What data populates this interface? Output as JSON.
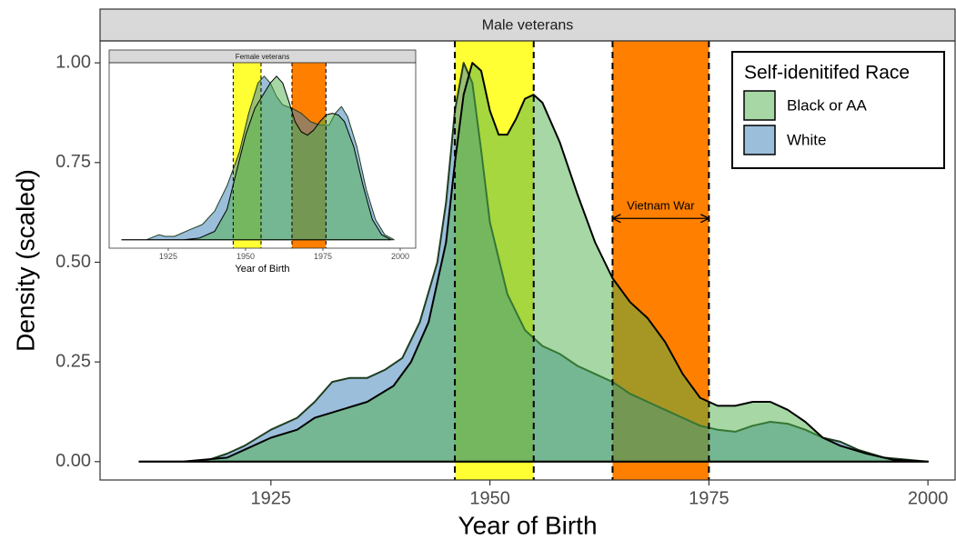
{
  "chart_data": [
    {
      "type": "area",
      "title": "Male veterans",
      "x_label": "Year of Birth",
      "y_label": "Density (scaled)",
      "legend_title": "Self-idenitifed Race",
      "legend": "top-right",
      "xlim": [
        1905.5,
        2003.1
      ],
      "ylim": [
        -0.046,
        1.055
      ],
      "xticks": [
        1925,
        1950,
        1975,
        2000
      ],
      "yticks": [
        {
          "value": 0,
          "label": "0.00"
        },
        {
          "value": 0.25,
          "label": "0.25"
        },
        {
          "value": 0.5,
          "label": "0.50"
        },
        {
          "value": 0.75,
          "label": "0.75"
        },
        {
          "value": 1,
          "label": "1.00"
        }
      ],
      "bands": [
        {
          "x": [
            1946,
            1955
          ],
          "color": "#ffff33"
        },
        {
          "x": [
            1964,
            1975
          ],
          "color": "#ff7f00"
        }
      ],
      "annotation": {
        "text": "Vietnam War",
        "x": [
          1964,
          1975
        ],
        "y": 0.61
      },
      "series": [
        {
          "name": "White",
          "color": "#377eb8",
          "x": [
            1910,
            1915,
            1918,
            1920,
            1922,
            1925,
            1928,
            1930,
            1932,
            1934,
            1936,
            1938,
            1940,
            1942,
            1944,
            1945,
            1946,
            1947,
            1948,
            1949,
            1950,
            1952,
            1954,
            1956,
            1958,
            1960,
            1962,
            1964,
            1966,
            1968,
            1970,
            1972,
            1974,
            1976,
            1978,
            1980,
            1982,
            1984,
            1986,
            1988,
            1990,
            1992,
            1995,
            2000
          ],
          "values": [
            0,
            0,
            0.005,
            0.02,
            0.04,
            0.08,
            0.11,
            0.15,
            0.2,
            0.21,
            0.21,
            0.23,
            0.26,
            0.35,
            0.5,
            0.65,
            0.88,
            1,
            0.95,
            0.78,
            0.6,
            0.42,
            0.33,
            0.29,
            0.27,
            0.24,
            0.22,
            0.2,
            0.17,
            0.15,
            0.13,
            0.11,
            0.09,
            0.08,
            0.075,
            0.09,
            0.1,
            0.095,
            0.08,
            0.06,
            0.05,
            0.03,
            0.01,
            0
          ]
        },
        {
          "name": "Black or AA",
          "color": "#4daf4a",
          "x": [
            1910,
            1915,
            1920,
            1922,
            1925,
            1928,
            1930,
            1933,
            1936,
            1939,
            1941,
            1943,
            1945,
            1946,
            1947,
            1948,
            1949,
            1950,
            1951,
            1952,
            1953,
            1954,
            1955,
            1956,
            1958,
            1960,
            1962,
            1964,
            1966,
            1968,
            1970,
            1972,
            1974,
            1976,
            1978,
            1980,
            1982,
            1984,
            1986,
            1988,
            1990,
            1993,
            1996,
            2000
          ],
          "values": [
            0,
            0,
            0.01,
            0.03,
            0.06,
            0.08,
            0.11,
            0.13,
            0.15,
            0.19,
            0.25,
            0.35,
            0.55,
            0.75,
            0.92,
            1,
            0.98,
            0.88,
            0.82,
            0.82,
            0.86,
            0.91,
            0.92,
            0.9,
            0.8,
            0.67,
            0.55,
            0.46,
            0.4,
            0.36,
            0.3,
            0.22,
            0.16,
            0.14,
            0.14,
            0.15,
            0.15,
            0.13,
            0.1,
            0.06,
            0.04,
            0.02,
            0.005,
            0
          ]
        }
      ]
    },
    {
      "type": "area",
      "title": "Female veterans",
      "x_label": "Year of Birth",
      "xlim": [
        1905.9,
        2005
      ],
      "ylim": [
        -0.05,
        1.05
      ],
      "xticks": [
        1925,
        1950,
        1975,
        2000
      ],
      "bands": [
        {
          "x": [
            1946,
            1955
          ],
          "color": "#ffff33"
        },
        {
          "x": [
            1965,
            1976
          ],
          "color": "#ff7f00"
        }
      ],
      "series": [
        {
          "color": "#377eb8",
          "x": [
            1910,
            1918,
            1922,
            1924,
            1927,
            1932,
            1936,
            1940,
            1944,
            1948,
            1951,
            1954,
            1956,
            1958,
            1960,
            1962,
            1965,
            1968,
            1971,
            1974,
            1977,
            1979,
            1981,
            1983,
            1986,
            1989,
            1992,
            1995,
            1998
          ],
          "values": [
            0,
            0,
            0.03,
            0.02,
            0.02,
            0.06,
            0.09,
            0.17,
            0.32,
            0.52,
            0.75,
            0.93,
            0.97,
            0.93,
            0.85,
            0.8,
            0.78,
            0.75,
            0.7,
            0.68,
            0.68,
            0.75,
            0.79,
            0.73,
            0.55,
            0.3,
            0.12,
            0.03,
            0
          ]
        },
        {
          "color": "#4daf4a",
          "x": [
            1910,
            1930,
            1935,
            1940,
            1944,
            1947,
            1950,
            1953,
            1956,
            1958,
            1960,
            1962,
            1964,
            1966,
            1968,
            1970,
            1972,
            1974,
            1976,
            1978,
            1980,
            1982,
            1985,
            1988,
            1991,
            1994,
            1997
          ],
          "values": [
            0,
            0,
            0.01,
            0.05,
            0.18,
            0.4,
            0.62,
            0.78,
            0.87,
            0.93,
            0.97,
            0.93,
            0.82,
            0.7,
            0.64,
            0.62,
            0.65,
            0.7,
            0.74,
            0.75,
            0.74,
            0.7,
            0.55,
            0.32,
            0.12,
            0.03,
            0
          ]
        }
      ]
    }
  ]
}
